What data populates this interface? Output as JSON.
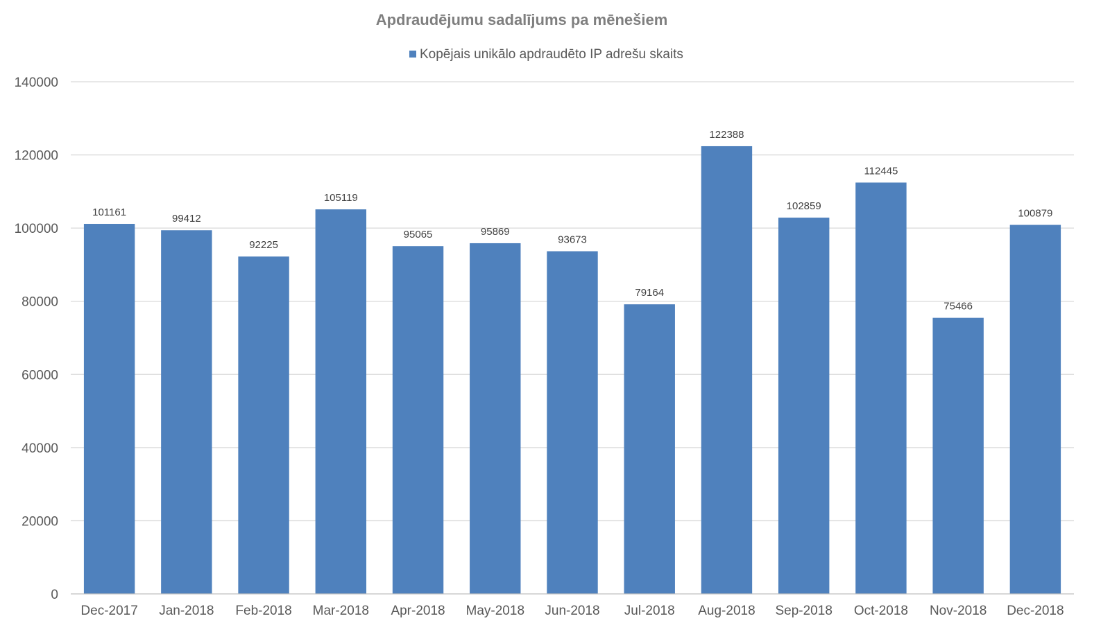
{
  "chart_data": {
    "type": "bar",
    "title": "Apdraudējumu sadalījums pa mēnešiem",
    "xlabel": "",
    "ylabel": "",
    "categories": [
      "Dec-2017",
      "Jan-2018",
      "Feb-2018",
      "Mar-2018",
      "Apr-2018",
      "May-2018",
      "Jun-2018",
      "Jul-2018",
      "Aug-2018",
      "Sep-2018",
      "Oct-2018",
      "Nov-2018",
      "Dec-2018"
    ],
    "series": [
      {
        "name": "Kopējais unikālo apdraudēto IP adrešu skaits",
        "color": "#4f81bd",
        "values": [
          101161,
          99412,
          92225,
          105119,
          95065,
          95869,
          93673,
          79164,
          122388,
          102859,
          112445,
          75466,
          100879
        ]
      }
    ],
    "ylim": [
      0,
      140000
    ],
    "yticks": [
      0,
      20000,
      40000,
      60000,
      80000,
      100000,
      120000,
      140000
    ],
    "grid": true,
    "legend_position": "top-center",
    "data_labels": true
  }
}
